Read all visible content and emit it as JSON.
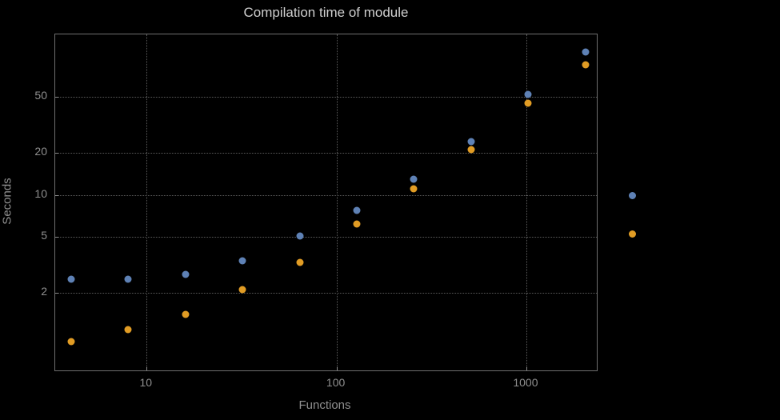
{
  "chart_data": {
    "type": "scatter",
    "title": "Compilation time of module",
    "xlabel": "Functions",
    "ylabel": "Seconds",
    "x_scale": "log",
    "y_scale": "log",
    "xlim": [
      3.3,
      2350
    ],
    "ylim": [
      0.56,
      140
    ],
    "grid": true,
    "x_ticks": [
      10,
      100,
      1000
    ],
    "x_tick_labels": [
      "10",
      "100",
      "1000"
    ],
    "y_ticks": [
      2,
      5,
      10,
      20,
      50
    ],
    "y_tick_labels": [
      "2",
      "5",
      "10",
      "20",
      "50"
    ],
    "x": [
      4,
      8,
      16,
      32,
      64,
      128,
      256,
      512,
      1024,
      2048
    ],
    "series": [
      {
        "name": "blue",
        "color": "#5e81b5",
        "values": [
          2.5,
          2.5,
          2.7,
          3.4,
          5.1,
          7.8,
          13,
          24,
          52,
          105
        ]
      },
      {
        "name": "orange",
        "color": "#e19c24",
        "values": [
          0.9,
          1.1,
          1.4,
          2.1,
          3.3,
          6.2,
          11,
          21,
          45,
          85
        ]
      }
    ],
    "legend": {
      "position": "right-outside",
      "markers": [
        {
          "name": "blue",
          "color": "#5e81b5"
        },
        {
          "name": "orange",
          "color": "#e19c24"
        }
      ]
    }
  },
  "colors": {
    "background": "#000000",
    "frame": "#6f6f6f",
    "grid": "#5b5b5b",
    "title_text": "#cfcfcf",
    "tick_text": "#8f8f8f"
  }
}
